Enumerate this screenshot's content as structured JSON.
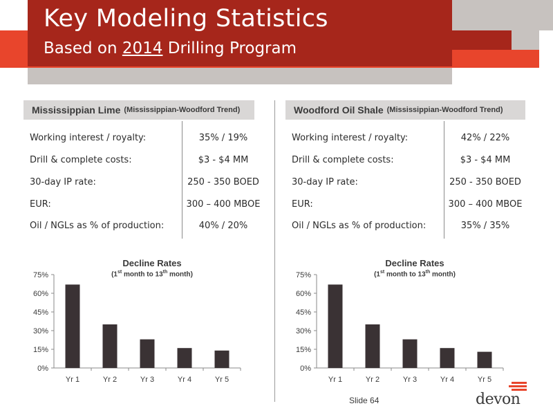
{
  "header": {
    "title": "Key Modeling Statistics",
    "subtitle_prefix": "Based on ",
    "subtitle_year": "2014",
    "subtitle_suffix": " Drilling Program"
  },
  "panels": [
    {
      "name": "Mississippian Lime",
      "trend": "(Mississippian-Woodford Trend)",
      "stats": [
        {
          "label": "Working interest / royalty:",
          "value": "35% / 19%"
        },
        {
          "label": "Drill & complete costs:",
          "value": "$3 - $4 MM"
        },
        {
          "label": "30-day IP rate:",
          "value": "250 - 350 BOED"
        },
        {
          "label": "EUR:",
          "value": "300 – 400 MBOE"
        },
        {
          "label": "Oil / NGLs as % of production:",
          "value": "40% / 20%"
        }
      ]
    },
    {
      "name": "Woodford Oil Shale",
      "trend": "(Mississippian-Woodford Trend)",
      "stats": [
        {
          "label": "Working interest / royalty:",
          "value": "42% / 22%"
        },
        {
          "label": "Drill & complete costs:",
          "value": "$3 - $4 MM"
        },
        {
          "label": "30-day IP rate:",
          "value": "250 - 350 BOED"
        },
        {
          "label": "EUR:",
          "value": "300 – 400 MBOE"
        },
        {
          "label": "Oil / NGLs as % of production:",
          "value": "35% / 35%"
        }
      ]
    }
  ],
  "chart_data": [
    {
      "type": "bar",
      "title": "Decline Rates",
      "subtitle": "(1st month to 13th month)",
      "categories": [
        "Yr 1",
        "Yr 2",
        "Yr 3",
        "Yr 4",
        "Yr 5"
      ],
      "values": [
        67,
        35,
        23,
        16,
        14
      ],
      "yticks": [
        "0%",
        "15%",
        "30%",
        "45%",
        "60%",
        "75%"
      ],
      "ylim": [
        0,
        75
      ],
      "bar_color": "#3a3234",
      "grid": false
    },
    {
      "type": "bar",
      "title": "Decline Rates",
      "subtitle": "(1st month to 13th month)",
      "categories": [
        "Yr 1",
        "Yr 2",
        "Yr 3",
        "Yr 4",
        "Yr 5"
      ],
      "values": [
        67,
        35,
        23,
        16,
        13
      ],
      "yticks": [
        "0%",
        "15%",
        "30%",
        "45%",
        "60%",
        "75%"
      ],
      "ylim": [
        0,
        75
      ],
      "bar_color": "#3a3234",
      "grid": false
    }
  ],
  "footer": {
    "slide_number": "Slide 64",
    "logo": "devon"
  },
  "colors": {
    "header_dark_red": "#a6261b",
    "header_orange": "#e8452c",
    "header_gray": "#c7c2bf",
    "panel_header_gray": "#d9d7d6"
  }
}
